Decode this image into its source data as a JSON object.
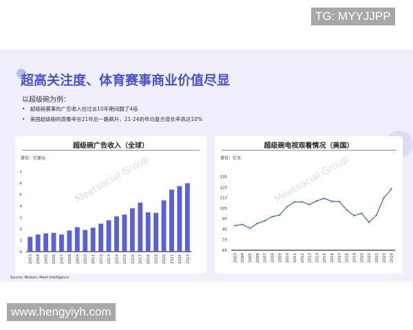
{
  "slide": {
    "title": "超高关注度、体育赛事商业价值尽显",
    "subtitle": "以超级碗为例：",
    "bullets": [
      "超级碗赛事的广告收入在过去10年期间翻了4倍",
      "美国超级碗的观看率在21年后一路飙升，21-24的年均复合增长率高达10%"
    ],
    "source": "Source: Nielsen, Meet Intelligence",
    "watermark": "Meetsocial Group"
  },
  "overlays": {
    "top_right": "TG: MYYJJPP",
    "bottom_left": "www.hengyiyh.com"
  },
  "chart_data": [
    {
      "type": "bar",
      "title": "超级碗广告收入（全球）",
      "unit": "单位：亿美元",
      "color": "#5a5fdc",
      "ylim": [
        0,
        7
      ],
      "yticks": [
        0,
        1,
        2,
        3,
        4,
        5,
        6,
        7
      ],
      "categories": [
        "2003",
        "2004",
        "2005",
        "2006",
        "2007",
        "2008",
        "2009",
        "2010",
        "2011",
        "2012",
        "2013",
        "2014",
        "2015",
        "2016",
        "2017",
        "2018",
        "2019",
        "2020",
        "2021",
        "2022",
        "2023"
      ],
      "values": [
        1.3,
        1.5,
        1.6,
        1.65,
        1.5,
        1.85,
        2.15,
        1.9,
        2.1,
        2.45,
        2.75,
        3.1,
        3.25,
        3.8,
        4.3,
        3.45,
        3.4,
        4.5,
        5.45,
        5.75,
        6.0
      ]
    },
    {
      "type": "line",
      "title": "超级碗电视观看情况（美国）",
      "unit": "单位：亿次",
      "color": "#4a6e9c",
      "ylim": [
        65,
        135
      ],
      "yticks": [
        65,
        75,
        85,
        95,
        105,
        115,
        125,
        135
      ],
      "categories": [
        "2003",
        "2004",
        "2005",
        "2006",
        "2007",
        "2008",
        "2009",
        "2010",
        "2011",
        "2012",
        "2013",
        "2014",
        "2015",
        "2016",
        "2017",
        "2018",
        "2019",
        "2020",
        "2021",
        "2022",
        "2023",
        "2024"
      ],
      "values": [
        88.5,
        89.5,
        86,
        90.5,
        93,
        97,
        98.5,
        106.5,
        111,
        111,
        108.5,
        112,
        114.4,
        111.5,
        111.3,
        103.4,
        98,
        100,
        91.6,
        98.5,
        115,
        123.4
      ]
    }
  ]
}
